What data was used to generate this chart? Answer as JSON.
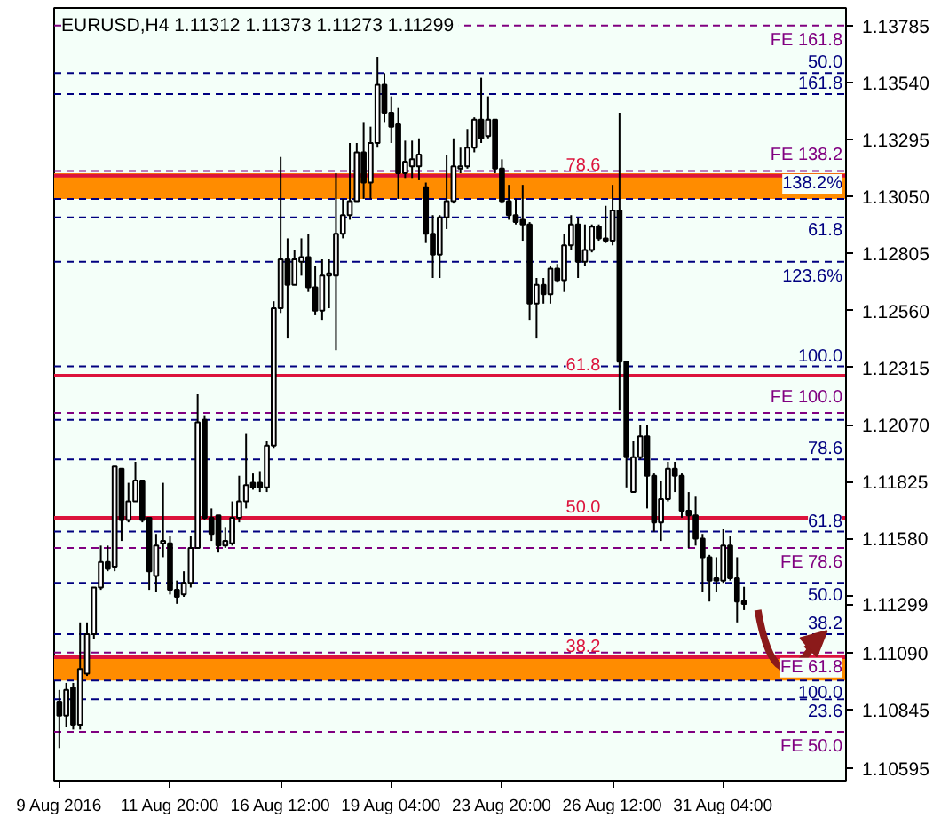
{
  "chart_data": {
    "type": "candlestick",
    "title": "EURUSD,H4  1.11312 1.11373 1.11273 1.11299",
    "categories": [
      "9 Aug 2016",
      null,
      null,
      null,
      null,
      null,
      null,
      null,
      null,
      null,
      null,
      null,
      null,
      null,
      null,
      null,
      "11 Aug 20:00",
      null,
      null,
      null,
      null,
      null,
      null,
      null,
      null,
      null,
      null,
      null,
      null,
      null,
      null,
      null,
      "16 Aug 12:00",
      null,
      null,
      null,
      null,
      null,
      null,
      null,
      null,
      null,
      null,
      null,
      null,
      null,
      null,
      null,
      "19 Aug 04:00",
      null,
      null,
      null,
      null,
      null,
      null,
      null,
      null,
      null,
      null,
      null,
      null,
      null,
      null,
      null,
      "23 Aug 20:00",
      null,
      null,
      null,
      null,
      null,
      null,
      null,
      null,
      null,
      null,
      null,
      null,
      null,
      null,
      null,
      "26 Aug 12:00",
      null,
      null,
      null,
      null,
      null,
      null,
      null,
      null,
      null,
      null,
      null,
      null,
      null,
      null,
      null,
      "31 Aug 04:00",
      null,
      null,
      null,
      null,
      null,
      null,
      null,
      null,
      null,
      null,
      null,
      null,
      null,
      null,
      null,
      null,
      null
    ],
    "ohlc": [
      [
        1.1088,
        1.1093,
        1.1068,
        1.1082
      ],
      [
        1.1082,
        1.1096,
        1.1077,
        1.1093
      ],
      [
        1.1094,
        1.1096,
        1.1076,
        1.1078
      ],
      [
        1.1078,
        1.1122,
        1.1076,
        1.1102
      ],
      [
        1.11,
        1.1122,
        1.1099,
        1.1117
      ],
      [
        1.1117,
        1.1137,
        1.1115,
        1.1137
      ],
      [
        1.1137,
        1.1155,
        1.1136,
        1.1148
      ],
      [
        1.1148,
        1.1155,
        1.1144,
        1.1145
      ],
      [
        1.1146,
        1.1189,
        1.1144,
        1.1189
      ],
      [
        1.1188,
        1.1188,
        1.1157,
        1.1166
      ],
      [
        1.1166,
        1.1182,
        1.1165,
        1.1174
      ],
      [
        1.1174,
        1.1191,
        1.1174,
        1.1183
      ],
      [
        1.1183,
        1.1183,
        1.1165,
        1.1166
      ],
      [
        1.1167,
        1.1167,
        1.1136,
        1.1144
      ],
      [
        1.1142,
        1.116,
        1.1135,
        1.1155
      ],
      [
        1.1156,
        1.1182,
        1.115,
        1.1157
      ],
      [
        1.1156,
        1.1159,
        1.1134,
        1.1136
      ],
      [
        1.1136,
        1.114,
        1.113,
        1.1133
      ],
      [
        1.1134,
        1.1144,
        1.1133,
        1.1139
      ],
      [
        1.1139,
        1.1159,
        1.1137,
        1.1154
      ],
      [
        1.1154,
        1.122,
        1.1154,
        1.1208
      ],
      [
        1.1209,
        1.1211,
        1.1166,
        1.1167
      ],
      [
        1.1167,
        1.1171,
        1.1157,
        1.116
      ],
      [
        1.1168,
        1.1168,
        1.1152,
        1.1155
      ],
      [
        1.1155,
        1.1163,
        1.1154,
        1.1157
      ],
      [
        1.1156,
        1.1174,
        1.1155,
        1.1167
      ],
      [
        1.1167,
        1.1185,
        1.1165,
        1.1174
      ],
      [
        1.1174,
        1.1203,
        1.1171,
        1.1181
      ],
      [
        1.1182,
        1.1186,
        1.1179,
        1.118
      ],
      [
        1.1182,
        1.1187,
        1.1178,
        1.118
      ],
      [
        1.118,
        1.12,
        1.1178,
        1.1198
      ],
      [
        1.1198,
        1.126,
        1.1197,
        1.1257
      ],
      [
        1.1257,
        1.1322,
        1.1255,
        1.1278
      ],
      [
        1.1278,
        1.1287,
        1.1244,
        1.1267
      ],
      [
        1.1267,
        1.1282,
        1.1267,
        1.1278
      ],
      [
        1.1277,
        1.1287,
        1.1271,
        1.1279
      ],
      [
        1.1279,
        1.1289,
        1.1264,
        1.1266
      ],
      [
        1.1266,
        1.1275,
        1.1254,
        1.1256
      ],
      [
        1.1256,
        1.1278,
        1.1252,
        1.1271
      ],
      [
        1.1271,
        1.1278,
        1.1257,
        1.1272
      ],
      [
        1.1271,
        1.1315,
        1.1239,
        1.1289
      ],
      [
        1.1289,
        1.1304,
        1.1287,
        1.1297
      ],
      [
        1.1297,
        1.1328,
        1.1295,
        1.1303
      ],
      [
        1.1303,
        1.1328,
        1.1303,
        1.1324
      ],
      [
        1.1324,
        1.1337,
        1.1304,
        1.1311
      ],
      [
        1.1311,
        1.1335,
        1.1304,
        1.1328
      ],
      [
        1.1328,
        1.1365,
        1.1326,
        1.1353
      ],
      [
        1.1353,
        1.1358,
        1.1337,
        1.1341
      ],
      [
        1.1341,
        1.1348,
        1.1328,
        1.1335
      ],
      [
        1.1336,
        1.1343,
        1.1304,
        1.1315
      ],
      [
        1.1315,
        1.1329,
        1.1313,
        1.132
      ],
      [
        1.1318,
        1.1329,
        1.1313,
        1.1321
      ],
      [
        1.1318,
        1.133,
        1.1312,
        1.1323
      ],
      [
        1.1309,
        1.1311,
        1.1285,
        1.1289
      ],
      [
        1.1289,
        1.1297,
        1.127,
        1.128
      ],
      [
        1.128,
        1.1297,
        1.127,
        1.1296
      ],
      [
        1.1296,
        1.1323,
        1.1291,
        1.1303
      ],
      [
        1.1303,
        1.133,
        1.1302,
        1.1318
      ],
      [
        1.1317,
        1.1326,
        1.1315,
        1.1318
      ],
      [
        1.1318,
        1.1334,
        1.1317,
        1.1326
      ],
      [
        1.1326,
        1.1339,
        1.1324,
        1.1338
      ],
      [
        1.1338,
        1.1356,
        1.1328,
        1.133
      ],
      [
        1.1331,
        1.1348,
        1.133,
        1.1338
      ],
      [
        1.1338,
        1.1338,
        1.1315,
        1.1317
      ],
      [
        1.1317,
        1.1321,
        1.1302,
        1.1303
      ],
      [
        1.1303,
        1.131,
        1.1295,
        1.1297
      ],
      [
        1.1297,
        1.1304,
        1.1293,
        1.1294
      ],
      [
        1.1295,
        1.131,
        1.1286,
        1.1293
      ],
      [
        1.1293,
        1.1294,
        1.1252,
        1.1259
      ],
      [
        1.1259,
        1.127,
        1.1244,
        1.1267
      ],
      [
        1.1267,
        1.127,
        1.1259,
        1.1263
      ],
      [
        1.1263,
        1.1275,
        1.1259,
        1.1274
      ],
      [
        1.1274,
        1.1276,
        1.1268,
        1.1269
      ],
      [
        1.1269,
        1.1289,
        1.1264,
        1.1284
      ],
      [
        1.1284,
        1.1297,
        1.1282,
        1.1293
      ],
      [
        1.1293,
        1.1296,
        1.127,
        1.1277
      ],
      [
        1.1277,
        1.1293,
        1.1275,
        1.1282
      ],
      [
        1.1282,
        1.1293,
        1.1281,
        1.1292
      ],
      [
        1.1292,
        1.1293,
        1.1286,
        1.1287
      ],
      [
        1.1287,
        1.1301,
        1.1285,
        1.1286
      ],
      [
        1.1286,
        1.131,
        1.1284,
        1.1299
      ],
      [
        1.1299,
        1.1341,
        1.1213,
        1.1234
      ],
      [
        1.1234,
        1.1234,
        1.118,
        1.1193
      ],
      [
        1.1178,
        1.12,
        1.1178,
        1.1193
      ],
      [
        1.1193,
        1.1207,
        1.1192,
        1.1202
      ],
      [
        1.1202,
        1.1207,
        1.1171,
        1.1185
      ],
      [
        1.1185,
        1.1186,
        1.1161,
        1.1165
      ],
      [
        1.1165,
        1.1183,
        1.1157,
        1.1175
      ],
      [
        1.1175,
        1.1191,
        1.1174,
        1.1188
      ],
      [
        1.1188,
        1.1191,
        1.1178,
        1.1185
      ],
      [
        1.1185,
        1.1186,
        1.1167,
        1.117
      ],
      [
        1.117,
        1.1178,
        1.1154,
        1.1168
      ],
      [
        1.1168,
        1.1176,
        1.1155,
        1.1158
      ],
      [
        1.1158,
        1.116,
        1.1135,
        1.115
      ],
      [
        1.115,
        1.1151,
        1.1131,
        1.114
      ],
      [
        1.1141,
        1.115,
        1.1135,
        1.114
      ],
      [
        1.114,
        1.1162,
        1.1139,
        1.1155
      ],
      [
        1.1155,
        1.1159,
        1.114,
        1.1141
      ],
      [
        1.1141,
        1.115,
        1.1122,
        1.1131
      ],
      [
        1.11312,
        1.11373,
        1.11273,
        1.11299
      ],
      null,
      null,
      null,
      null,
      null,
      null,
      null,
      null,
      null,
      null,
      null,
      null,
      null,
      null
    ],
    "ylim": [
      1.1054,
      1.1386
    ],
    "yticks": [
      1.13785,
      {
        "value": 1.1354,
        "label": "1.13540"
      },
      1.13295,
      {
        "value": 1.1305,
        "label": "1.13050"
      },
      1.12805,
      {
        "value": 1.1256,
        "label": "1.12560"
      },
      1.12315,
      {
        "value": 1.1207,
        "label": "1.12070"
      },
      1.11825,
      {
        "value": 1.1158,
        "label": "1.11580"
      },
      {
        "value": 1.11335,
        "label": null
      },
      1.11299,
      {
        "value": 1.1109,
        "label": "1.11090"
      },
      1.10845,
      1.10595
    ],
    "bands": [
      {
        "axis": "y",
        "from": 1.1304,
        "to": 1.1315,
        "color": "#ff8c00"
      },
      {
        "axis": "y",
        "from": 1.1097,
        "to": 1.1107,
        "color": "#ff8c00"
      }
    ],
    "ref_lines": [
      {
        "axis": "y",
        "value": 1.13785,
        "color": "#800080",
        "line_style": "dashed"
      },
      {
        "axis": "y",
        "value": 1.1358,
        "color": "#000080",
        "line_style": "dashed"
      },
      {
        "axis": "y",
        "value": 1.1349,
        "color": "#000080",
        "line_style": "dashed"
      },
      {
        "axis": "y",
        "value": 1.1316,
        "color": "#800080",
        "line_style": "dashed"
      },
      {
        "axis": "y",
        "value": 1.1314,
        "color": "#dc143c",
        "line_style": "solid"
      },
      {
        "axis": "y",
        "value": 1.1304,
        "color": "#000080",
        "line_style": "dashed"
      },
      {
        "axis": "y",
        "value": 1.1296,
        "color": "#000080",
        "line_style": "dashed"
      },
      {
        "axis": "y",
        "value": 1.1277,
        "color": "#000080",
        "line_style": "dashed"
      },
      {
        "axis": "y",
        "value": 1.1232,
        "color": "#000080",
        "line_style": "dashed"
      },
      {
        "axis": "y",
        "value": 1.1228,
        "color": "#dc143c",
        "line_style": "solid"
      },
      {
        "axis": "y",
        "value": 1.1212,
        "color": "#800080",
        "line_style": "dashed"
      },
      {
        "axis": "y",
        "value": 1.1209,
        "color": "#000080",
        "line_style": "dashed"
      },
      {
        "axis": "y",
        "value": 1.1192,
        "color": "#000080",
        "line_style": "dashed"
      },
      {
        "axis": "y",
        "value": 1.1167,
        "color": "#dc143c",
        "line_style": "solid"
      },
      {
        "axis": "y",
        "value": 1.1161,
        "color": "#000080",
        "line_style": "dashed"
      },
      {
        "axis": "y",
        "value": 1.1154,
        "color": "#800080",
        "line_style": "dashed"
      },
      {
        "axis": "y",
        "value": 1.1139,
        "color": "#000080",
        "line_style": "dashed"
      },
      {
        "axis": "y",
        "value": 1.1117,
        "color": "#000080",
        "line_style": "dashed"
      },
      {
        "axis": "y",
        "value": 1.1109,
        "color": "#800080",
        "line_style": "dashed"
      },
      {
        "axis": "y",
        "value": 1.1107,
        "color": "#dc143c",
        "line_style": "solid"
      },
      {
        "axis": "y",
        "value": 1.1097,
        "color": "#000080",
        "line_style": "dashed"
      },
      {
        "axis": "y",
        "value": 1.1089,
        "color": "#000080",
        "line_style": "dashed"
      },
      {
        "axis": "y",
        "value": 1.1075,
        "color": "#800080",
        "line_style": "dashed"
      }
    ],
    "annotations": [
      {
        "text": "FE 161.8",
        "y": 1.13785
      },
      {
        "text": "50.0",
        "y": 1.1358
      },
      {
        "text": "161.8",
        "y": 1.1349
      },
      {
        "text": "FE 138.2",
        "y": 1.1316
      },
      {
        "text": "78.6",
        "y": 1.1314
      },
      {
        "text": "138.2%",
        "y": 1.1304
      },
      {
        "text": "61.8",
        "y": 1.1296
      },
      {
        "text": "123.6%",
        "y": 1.1277
      },
      {
        "text": "100.0",
        "y": 1.1232
      },
      {
        "text": "61.8",
        "y": 1.1228
      },
      {
        "text": "FE 100.0",
        "y": 1.1212
      },
      {
        "text": "78.6",
        "y": 1.1192
      },
      {
        "text": "50.0",
        "y": 1.1167
      },
      {
        "text": "61.8",
        "y": 1.1161
      },
      {
        "text": "FE 78.6",
        "y": 1.1154
      },
      {
        "text": "50.0",
        "y": 1.1139
      },
      {
        "text": "38.2",
        "y": 1.1117
      },
      {
        "text": "FE 61.8",
        "y": 1.1109
      },
      {
        "text": "38.2",
        "y": 1.1107
      },
      {
        "text": "100.0",
        "y": 1.1097
      },
      {
        "text": "23.6",
        "y": 1.1089
      },
      {
        "text": "FE 50.0",
        "y": 1.1075
      }
    ]
  }
}
